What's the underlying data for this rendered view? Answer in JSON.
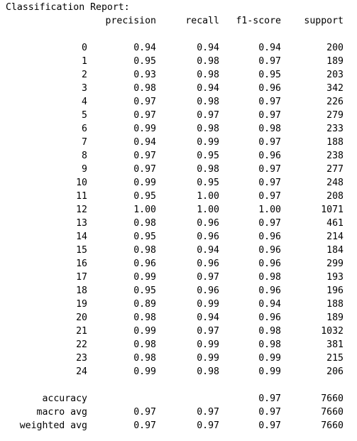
{
  "report": {
    "title": "Classification Report:",
    "columns": [
      "precision",
      "recall",
      "f1-score",
      "support"
    ],
    "classes": [
      {
        "label": "0",
        "precision": "0.94",
        "recall": "0.94",
        "f1": "0.94",
        "support": "200"
      },
      {
        "label": "1",
        "precision": "0.95",
        "recall": "0.98",
        "f1": "0.97",
        "support": "189"
      },
      {
        "label": "2",
        "precision": "0.93",
        "recall": "0.98",
        "f1": "0.95",
        "support": "203"
      },
      {
        "label": "3",
        "precision": "0.98",
        "recall": "0.94",
        "f1": "0.96",
        "support": "342"
      },
      {
        "label": "4",
        "precision": "0.97",
        "recall": "0.98",
        "f1": "0.97",
        "support": "226"
      },
      {
        "label": "5",
        "precision": "0.97",
        "recall": "0.97",
        "f1": "0.97",
        "support": "279"
      },
      {
        "label": "6",
        "precision": "0.99",
        "recall": "0.98",
        "f1": "0.98",
        "support": "233"
      },
      {
        "label": "7",
        "precision": "0.94",
        "recall": "0.99",
        "f1": "0.97",
        "support": "188"
      },
      {
        "label": "8",
        "precision": "0.97",
        "recall": "0.95",
        "f1": "0.96",
        "support": "238"
      },
      {
        "label": "9",
        "precision": "0.97",
        "recall": "0.98",
        "f1": "0.97",
        "support": "277"
      },
      {
        "label": "10",
        "precision": "0.99",
        "recall": "0.95",
        "f1": "0.97",
        "support": "248"
      },
      {
        "label": "11",
        "precision": "0.95",
        "recall": "1.00",
        "f1": "0.97",
        "support": "208"
      },
      {
        "label": "12",
        "precision": "1.00",
        "recall": "1.00",
        "f1": "1.00",
        "support": "1071"
      },
      {
        "label": "13",
        "precision": "0.98",
        "recall": "0.96",
        "f1": "0.97",
        "support": "461"
      },
      {
        "label": "14",
        "precision": "0.95",
        "recall": "0.96",
        "f1": "0.96",
        "support": "214"
      },
      {
        "label": "15",
        "precision": "0.98",
        "recall": "0.94",
        "f1": "0.96",
        "support": "184"
      },
      {
        "label": "16",
        "precision": "0.96",
        "recall": "0.96",
        "f1": "0.96",
        "support": "299"
      },
      {
        "label": "17",
        "precision": "0.99",
        "recall": "0.97",
        "f1": "0.98",
        "support": "193"
      },
      {
        "label": "18",
        "precision": "0.95",
        "recall": "0.96",
        "f1": "0.96",
        "support": "196"
      },
      {
        "label": "19",
        "precision": "0.89",
        "recall": "0.99",
        "f1": "0.94",
        "support": "188"
      },
      {
        "label": "20",
        "precision": "0.98",
        "recall": "0.94",
        "f1": "0.96",
        "support": "189"
      },
      {
        "label": "21",
        "precision": "0.99",
        "recall": "0.97",
        "f1": "0.98",
        "support": "1032"
      },
      {
        "label": "22",
        "precision": "0.98",
        "recall": "0.99",
        "f1": "0.98",
        "support": "381"
      },
      {
        "label": "23",
        "precision": "0.98",
        "recall": "0.99",
        "f1": "0.99",
        "support": "215"
      },
      {
        "label": "24",
        "precision": "0.99",
        "recall": "0.98",
        "f1": "0.99",
        "support": "206"
      }
    ],
    "summary": [
      {
        "label": "accuracy",
        "precision": "",
        "recall": "",
        "f1": "0.97",
        "support": "7660"
      },
      {
        "label": "macro avg",
        "precision": "0.97",
        "recall": "0.97",
        "f1": "0.97",
        "support": "7660"
      },
      {
        "label": "weighted avg",
        "precision": "0.97",
        "recall": "0.97",
        "f1": "0.97",
        "support": "7660"
      }
    ]
  }
}
